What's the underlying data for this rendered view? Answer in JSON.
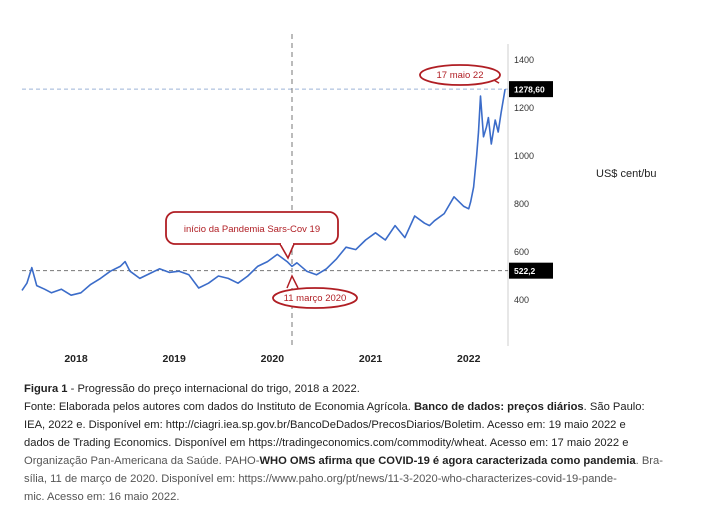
{
  "chart_data": {
    "type": "line",
    "unit_label": "US$ cent/bu",
    "x_ticks": [
      "2018",
      "2019",
      "2020",
      "2021",
      "2022"
    ],
    "y_ticks": [
      400,
      600,
      800,
      1000,
      1200,
      1400
    ],
    "ylim": [
      300,
      1440
    ],
    "xlim": [
      2017.45,
      2022.4
    ],
    "reference_lines": [
      {
        "label": "522,2",
        "value": 522.2
      },
      {
        "label": "1278,60",
        "value": 1278.6
      }
    ],
    "vertical_line_x": 2020.2,
    "annotations": [
      {
        "text": "17 maio 22",
        "x": 2022.37,
        "y": 1278.6
      },
      {
        "text": "início da Pandemia Sars-Cov 19",
        "x": 2020.2,
        "y": 522.2
      },
      {
        "text": "11 março 2020",
        "x": 2020.2,
        "y": 522.2
      }
    ],
    "series": [
      {
        "color": "#3b6cc9",
        "x": [
          2017.45,
          2017.5,
          2017.55,
          2017.6,
          2017.68,
          2017.75,
          2017.85,
          2017.95,
          2018.05,
          2018.15,
          2018.25,
          2018.35,
          2018.45,
          2018.5,
          2018.55,
          2018.65,
          2018.75,
          2018.85,
          2018.95,
          2019.05,
          2019.15,
          2019.25,
          2019.35,
          2019.45,
          2019.55,
          2019.65,
          2019.75,
          2019.85,
          2019.95,
          2020.05,
          2020.1,
          2020.15,
          2020.2,
          2020.25,
          2020.35,
          2020.45,
          2020.55,
          2020.65,
          2020.75,
          2020.85,
          2020.95,
          2021.05,
          2021.15,
          2021.25,
          2021.35,
          2021.45,
          2021.55,
          2021.6,
          2021.65,
          2021.75,
          2021.85,
          2021.95,
          2022.0,
          2022.02,
          2022.05,
          2022.08,
          2022.1,
          2022.12,
          2022.15,
          2022.18,
          2022.2,
          2022.23,
          2022.27,
          2022.3,
          2022.33,
          2022.37
        ],
        "y": [
          440,
          470,
          535,
          460,
          445,
          430,
          445,
          420,
          430,
          465,
          490,
          520,
          540,
          560,
          520,
          490,
          510,
          530,
          515,
          520,
          505,
          450,
          470,
          500,
          490,
          470,
          500,
          540,
          560,
          590,
          575,
          560,
          540,
          555,
          520,
          505,
          530,
          570,
          620,
          610,
          650,
          680,
          650,
          710,
          660,
          750,
          720,
          710,
          730,
          760,
          830,
          790,
          780,
          810,
          870,
          1000,
          1100,
          1250,
          1080,
          1120,
          1160,
          1050,
          1150,
          1100,
          1180,
          1278.6
        ]
      }
    ]
  },
  "caption": {
    "figure_label": "Figura 1",
    "figure_text": " - Progressão do preço internacional do trigo, 2018 a 2022.",
    "source_l1a": "Fonte: Elaborada pelos autores com dados do Instituto de Economia Agrícola. ",
    "source_l1b": "Banco de dados: preços diários",
    "source_l1c": ". São Paulo:",
    "source_l2": "IEA, 2022 e. Disponível em: http://ciagri.iea.sp.gov.br/BancoDeDados/PrecosDiarios/Boletim. Acesso em: 19 maio 2022 e",
    "source_l3": "dados de Trading Economics. Disponível em https://tradingeconomics.com/commodity/wheat. Acesso em: 17 maio 2022 e",
    "source_l4a": "Organização Pan-Americana da Saúde. PAHO-",
    "source_l4b": "WHO OMS afirma que COVID-19 é agora caracterizada como pandemia",
    "source_l4c": ". Bra-",
    "source_l5": "sília, 11 de março de 2020. Disponível em: https://www.paho.org/pt/news/11-3-2020-who-characterizes-covid-19-pande-",
    "source_l6": "mic. Acesso em: 16 maio 2022."
  }
}
